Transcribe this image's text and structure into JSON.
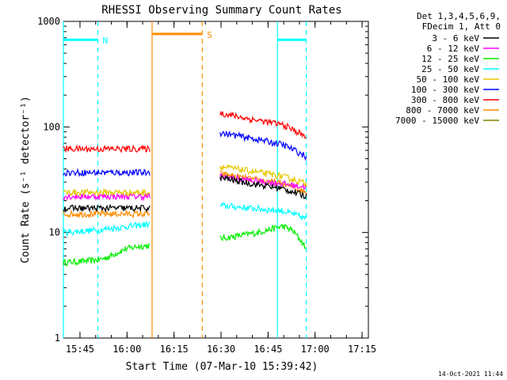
{
  "chart_data": {
    "type": "line",
    "title": "RHESSI Observing Summary Count Rates",
    "xlabel": "Start Time (07-Mar-10 15:39:42)",
    "ylabel": "Count Rate (s⁻¹ detector⁻¹)",
    "y_scale": "log",
    "ylim": [
      1,
      1000
    ],
    "xlim": [
      "15:39:42",
      "17:17:00"
    ],
    "y_ticks": [
      "1",
      "10",
      "100",
      "1000"
    ],
    "x_ticks": [
      "15:45",
      "16:00",
      "16:15",
      "16:30",
      "16:45",
      "17:00",
      "17:15"
    ],
    "x_units": "minutes after 15:39:42",
    "legend_header": [
      "Det 1,3,4,5,6,9,",
      "FDecim 1, Att 0"
    ],
    "legend_position": "right",
    "footer_date": "14-Oct-2021 11:44",
    "series": [
      {
        "name": "3 - 6 keV",
        "color": "#000000",
        "segments": [
          {
            "x": [
              0,
              27.6
            ],
            "y": [
              17,
              17
            ]
          },
          {
            "x": [
              50,
              60,
              70,
              77.5
            ],
            "y": [
              33,
              29,
              26,
              22
            ]
          }
        ]
      },
      {
        "name": "6 - 12 keV",
        "color": "#ff00ff",
        "segments": [
          {
            "x": [
              0,
              27.6
            ],
            "y": [
              22,
              22
            ]
          },
          {
            "x": [
              50,
              60,
              70,
              77.5
            ],
            "y": [
              34,
              31,
              29,
              27
            ]
          }
        ]
      },
      {
        "name": "12 - 25 keV",
        "color": "#00ee00",
        "segments": [
          {
            "x": [
              0,
              5,
              11,
              14,
              20,
              24,
              27.6
            ],
            "y": [
              5.2,
              5.3,
              5.5,
              5.8,
              7,
              7.4,
              7.5
            ]
          },
          {
            "x": [
              50,
              55,
              62,
              70,
              73,
              77.5
            ],
            "y": [
              8.8,
              9.2,
              10,
              11.5,
              10.5,
              7
            ]
          }
        ]
      },
      {
        "name": "25 - 50 keV",
        "color": "#00ffff",
        "segments": [
          {
            "x": [
              0,
              10,
              27.6
            ],
            "y": [
              10,
              10.5,
              12
            ]
          },
          {
            "x": [
              50,
              60,
              70,
              77.5
            ],
            "y": [
              18,
              17,
              16,
              13.5
            ]
          }
        ]
      },
      {
        "name": "50 - 100 keV",
        "color": "#e6c800",
        "segments": [
          {
            "x": [
              0,
              27.6
            ],
            "y": [
              24,
              24
            ]
          },
          {
            "x": [
              50,
              60,
              70,
              77.5
            ],
            "y": [
              42,
              38,
              34,
              29
            ]
          }
        ]
      },
      {
        "name": "100 - 300 keV",
        "color": "#0000ff",
        "segments": [
          {
            "x": [
              0,
              27.6
            ],
            "y": [
              37,
              37
            ]
          },
          {
            "x": [
              50,
              60,
              70,
              77.5
            ],
            "y": [
              88,
              78,
              68,
              52
            ]
          }
        ]
      },
      {
        "name": "300 - 800 keV",
        "color": "#ff0000",
        "segments": [
          {
            "x": [
              0,
              27.6
            ],
            "y": [
              62,
              62
            ]
          },
          {
            "x": [
              50,
              60,
              70,
              77.5
            ],
            "y": [
              135,
              118,
              105,
              80
            ]
          }
        ]
      },
      {
        "name": "800 - 7000 keV",
        "color": "#ff8c00",
        "segments": [
          {
            "x": [
              0,
              27.6
            ],
            "y": [
              15,
              15
            ]
          },
          {
            "x": [
              50,
              60,
              70,
              77.5
            ],
            "y": [
              36,
              32,
              29,
              24
            ]
          }
        ]
      },
      {
        "name": "7000 - 15000 keV",
        "color": "#808000",
        "segments": []
      }
    ],
    "annotations": [
      {
        "label": "N",
        "color": "#00ffff",
        "x_start": 0,
        "x_end": 11,
        "y": 670
      },
      {
        "label": "",
        "color": "#00ffff",
        "x_start": 68.3,
        "x_end": 77.5,
        "y": 670
      },
      {
        "label": "S",
        "color": "#ff8c00",
        "x_start": 28.3,
        "x_end": 44.3,
        "y": 760
      }
    ],
    "markers": [
      {
        "x": 0,
        "color": "#00ffff",
        "style": "solid"
      },
      {
        "x": 11,
        "color": "#00ffff",
        "style": "dashed"
      },
      {
        "x": 68.3,
        "color": "#00ffff",
        "style": "solid"
      },
      {
        "x": 77.5,
        "color": "#00ffff",
        "style": "dashed"
      },
      {
        "x": 28.3,
        "color": "#ff8c00",
        "style": "solid"
      },
      {
        "x": 44.3,
        "color": "#ff8c00",
        "style": "dashed"
      }
    ]
  }
}
